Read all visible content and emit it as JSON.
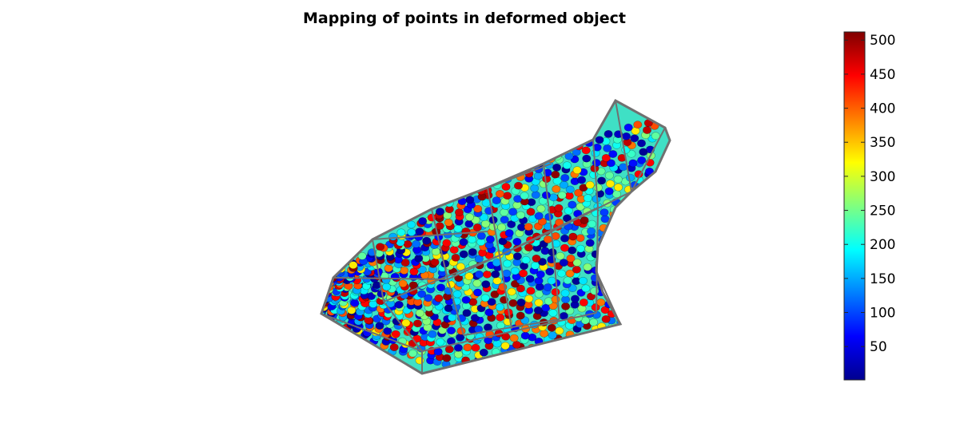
{
  "chart_data": {
    "type": "scatter",
    "title": "Mapping of points in deformed object",
    "xlabel": "",
    "ylabel": "",
    "grid": false,
    "colormap": "jet",
    "color_range": [
      1,
      512
    ],
    "colorbar": {
      "placement": "right",
      "ticks": [
        50,
        100,
        150,
        200,
        250,
        300,
        350,
        400,
        450,
        500
      ],
      "tick_labels": [
        "50",
        "100",
        "150",
        "200",
        "250",
        "300",
        "350",
        "400",
        "450",
        "500"
      ]
    },
    "series": [
      {
        "name": "points",
        "description_values": "per-point index values mapped to colour",
        "values": [
          23,
          410,
          180,
          95,
          470,
          220,
          60,
          390,
          150,
          505,
          12,
          330,
          240,
          120,
          450,
          70,
          200,
          480,
          35,
          260
        ]
      }
    ]
  },
  "colors": {
    "mesh_edge": "#707070",
    "background": "#ffffff"
  }
}
